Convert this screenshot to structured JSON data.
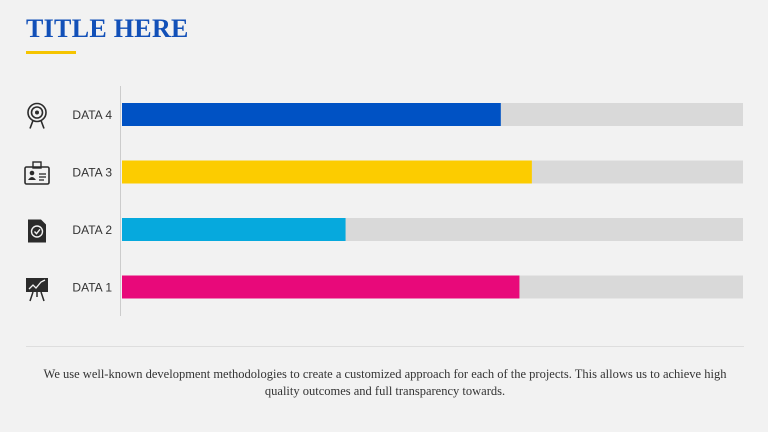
{
  "title": "TITLE HERE",
  "caption": "We use well-known development methodologies to create a customized approach for each of the projects. This allows us to achieve high quality outcomes and full transparency towards.",
  "colors": {
    "title": "#1250b8",
    "accent_underline": "#f5c400",
    "track": "#d9d9d9"
  },
  "chart_data": {
    "type": "bar",
    "orientation": "horizontal",
    "categories": [
      "DATA 4",
      "DATA 3",
      "DATA 2",
      "DATA 1"
    ],
    "values": [
      61,
      66,
      36,
      64
    ],
    "xlim": [
      0,
      100
    ],
    "colors": [
      "#0052c4",
      "#fccc00",
      "#06a9dd",
      "#e8097a"
    ],
    "icons": [
      "target-icon",
      "id-card-icon",
      "check-document-icon",
      "presentation-board-icon"
    ],
    "grid": false,
    "legend": "none"
  }
}
